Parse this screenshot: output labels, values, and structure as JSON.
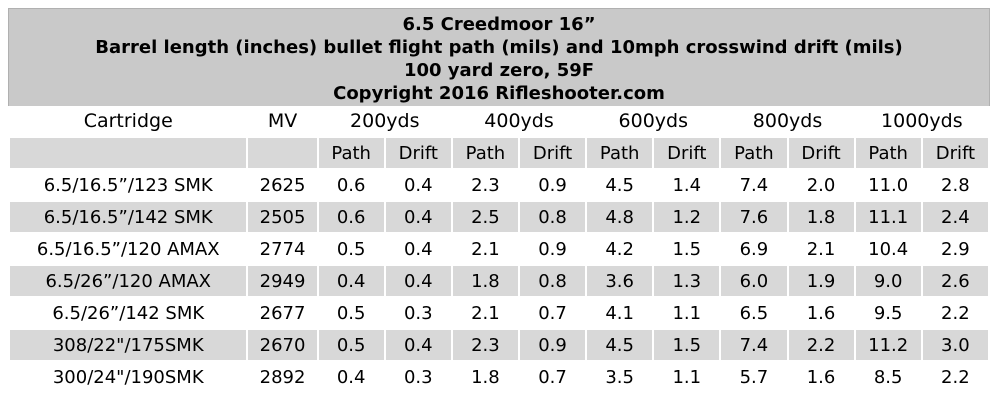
{
  "title": {
    "line1": "6.5 Creedmoor 16”",
    "line2": "Barrel length (inches) bullet flight path (mils) and 10mph crosswind drift (mils)",
    "line3": "100 yard zero, 59F",
    "line4": "Copyright 2016 Rifleshooter.com"
  },
  "headers": {
    "cartridge": "Cartridge",
    "mv": "MV",
    "ranges": [
      "200yds",
      "400yds",
      "600yds",
      "800yds",
      "1000yds"
    ],
    "path": "Path",
    "drift": "Drift"
  },
  "rows": [
    {
      "cartridge": "6.5/16.5”/123 SMK",
      "mv": "2625",
      "values": [
        "0.6",
        "0.4",
        "2.3",
        "0.9",
        "4.5",
        "1.4",
        "7.4",
        "2.0",
        "11.0",
        "2.8"
      ]
    },
    {
      "cartridge": "6.5/16.5”/142 SMK",
      "mv": "2505",
      "values": [
        "0.6",
        "0.4",
        "2.5",
        "0.8",
        "4.8",
        "1.2",
        "7.6",
        "1.8",
        "11.1",
        "2.4"
      ]
    },
    {
      "cartridge": "6.5/16.5”/120 AMAX",
      "mv": "2774",
      "values": [
        "0.5",
        "0.4",
        "2.1",
        "0.9",
        "4.2",
        "1.5",
        "6.9",
        "2.1",
        "10.4",
        "2.9"
      ]
    },
    {
      "cartridge": "6.5/26”/120 AMAX",
      "mv": "2949",
      "values": [
        "0.4",
        "0.4",
        "1.8",
        "0.8",
        "3.6",
        "1.3",
        "6.0",
        "1.9",
        "9.0",
        "2.6"
      ]
    },
    {
      "cartridge": "6.5/26”/142 SMK",
      "mv": "2677",
      "values": [
        "0.5",
        "0.3",
        "2.1",
        "0.7",
        "4.1",
        "1.1",
        "6.5",
        "1.6",
        "9.5",
        "2.2"
      ]
    },
    {
      "cartridge": "308/22\"/175SMK",
      "mv": "2670",
      "values": [
        "0.5",
        "0.4",
        "2.3",
        "0.9",
        "4.5",
        "1.5",
        "7.4",
        "2.2",
        "11.2",
        "3.0"
      ]
    },
    {
      "cartridge": "300/24\"/190SMK",
      "mv": "2892",
      "values": [
        "0.4",
        "0.3",
        "1.8",
        "0.7",
        "3.5",
        "1.1",
        "5.7",
        "1.6",
        "8.5",
        "2.2"
      ]
    }
  ]
}
